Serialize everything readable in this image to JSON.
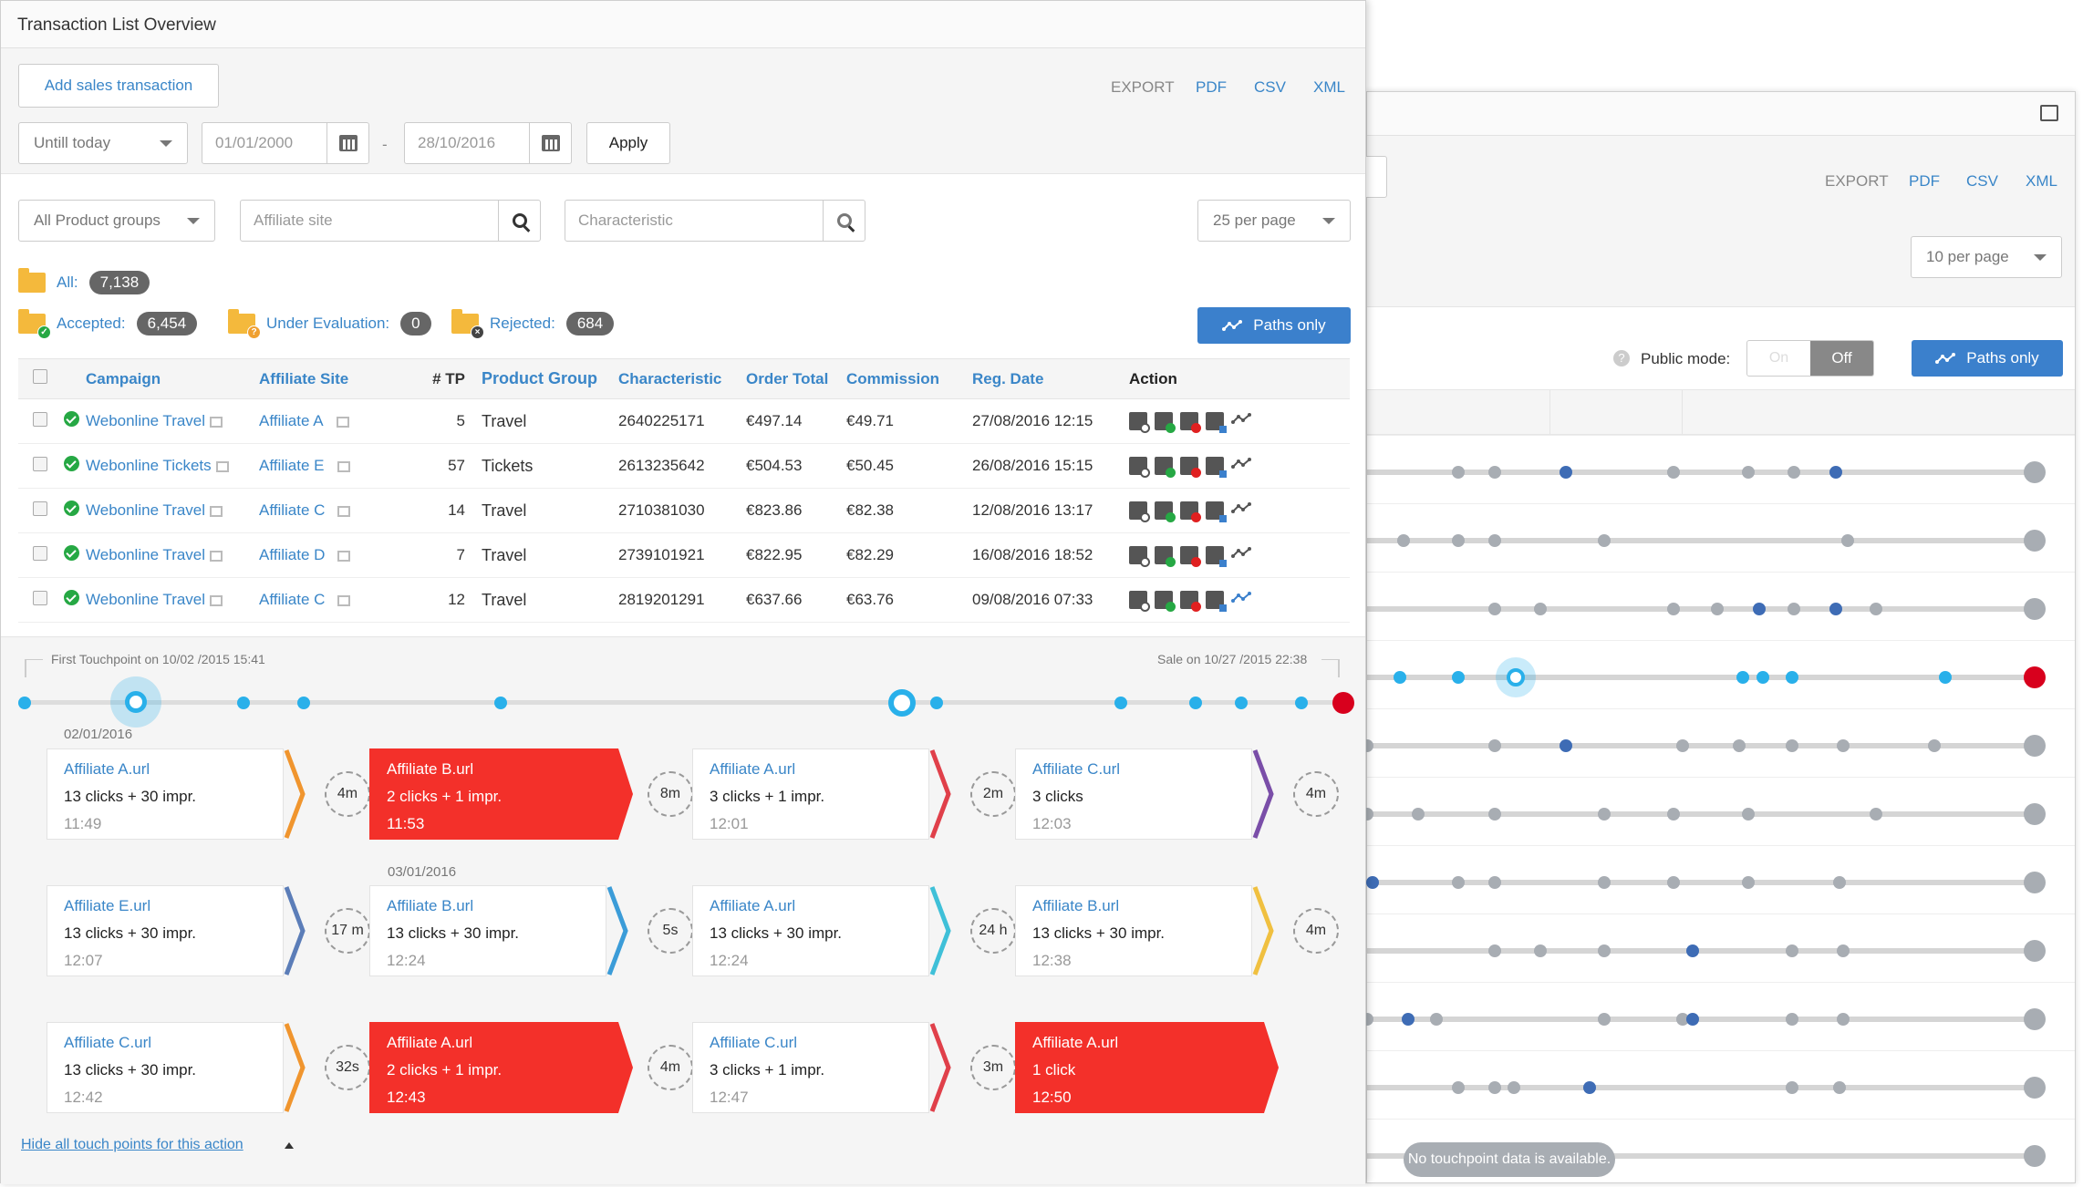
{
  "back_panel": {
    "export": {
      "label": "EXPORT",
      "pdf": "PDF",
      "csv": "CSV",
      "xml": "XML"
    },
    "per_page": "10 per page",
    "public_mode": {
      "label": "Public mode:",
      "on": "On",
      "off": "Off"
    },
    "paths_only": "Paths only",
    "no_data": "No touchpoint data is available."
  },
  "front": {
    "title": "Transaction List Overview",
    "add_button": "Add sales transaction",
    "export": {
      "label": "EXPORT",
      "pdf": "PDF",
      "csv": "CSV",
      "xml": "XML"
    },
    "period_select": "Untill today",
    "date_from": "01/01/2000",
    "date_sep": "-",
    "date_to": "28/10/2016",
    "apply": "Apply",
    "product_groups": "All Product groups",
    "affiliate_placeholder": "Affiliate site",
    "characteristic_placeholder": "Characteristic",
    "per_page": "25 per page",
    "stats": {
      "all_label": "All:",
      "all_count": "7,138",
      "accepted_label": "Accepted:",
      "accepted_count": "6,454",
      "under_label": "Under Evaluation:",
      "under_count": "0",
      "rejected_label": "Rejected:",
      "rejected_count": "684"
    },
    "paths_only": "Paths only",
    "table": {
      "headers": [
        "Campaign",
        "Affiliate Site",
        "# TP",
        "Product Group",
        "Characteristic",
        "Order Total",
        "Commission",
        "Reg. Date",
        "Action"
      ],
      "rows": [
        {
          "campaign": "Webonline Travel",
          "site": "Affiliate A",
          "tp": "5",
          "group": "Travel",
          "char": "2640225171",
          "total": "€497.14",
          "comm": "€49.71",
          "date": "27/08/2016 12:15"
        },
        {
          "campaign": "Webonline Tickets",
          "site": "Affiliate E",
          "tp": "57",
          "group": "Tickets",
          "char": "2613235642",
          "total": "€504.53",
          "comm": "€50.45",
          "date": "26/08/2016 15:15"
        },
        {
          "campaign": "Webonline Travel",
          "site": "Affiliate C",
          "tp": "14",
          "group": "Travel",
          "char": "2710381030",
          "total": "€823.86",
          "comm": "€82.38",
          "date": "12/08/2016 13:17"
        },
        {
          "campaign": "Webonline Travel",
          "site": "Affiliate D",
          "tp": "7",
          "group": "Travel",
          "char": "2739101921",
          "total": "€822.95",
          "comm": "€82.29",
          "date": "16/08/2016 18:52"
        },
        {
          "campaign": "Webonline Travel",
          "site": "Affiliate C",
          "tp": "12",
          "group": "Travel",
          "char": "2819201291",
          "total": "€637.66",
          "comm": "€63.76",
          "date": "09/08/2016 07:33"
        }
      ]
    },
    "touchpoints": {
      "first": "First Touchpoint on 10/02 /2015 15:41",
      "sale": "Sale on 10/27 /2015 22:38",
      "date1": "02/01/2016",
      "date2": "03/01/2016",
      "cards": [
        {
          "url": "Affiliate A.url",
          "clicks": "13 clicks + 30 impr.",
          "time": "11:49",
          "gap": "4m"
        },
        {
          "url": "Affiliate B.url",
          "clicks": "2 clicks + 1 impr.",
          "time": "11:53",
          "gap": "8m"
        },
        {
          "url": "Affiliate A.url",
          "clicks": "3 clicks + 1 impr.",
          "time": "12:01",
          "gap": "2m"
        },
        {
          "url": "Affiliate C.url",
          "clicks": "3 clicks",
          "time": "12:03",
          "gap": "4m"
        },
        {
          "url": "Affiliate E.url",
          "clicks": "13 clicks + 30 impr.",
          "time": "12:07",
          "gap": "17 m"
        },
        {
          "url": "Affiliate B.url",
          "clicks": "13 clicks + 30 impr.",
          "time": "12:24",
          "gap": "5s"
        },
        {
          "url": "Affiliate A.url",
          "clicks": "13 clicks + 30 impr.",
          "time": "12:24",
          "gap": "24 h"
        },
        {
          "url": "Affiliate B.url",
          "clicks": "13 clicks + 30 impr.",
          "time": "12:38",
          "gap": "4m"
        },
        {
          "url": "Affiliate C.url",
          "clicks": "13 clicks + 30 impr.",
          "time": "12:42",
          "gap": "32s"
        },
        {
          "url": "Affiliate A.url",
          "clicks": "2 clicks + 1 impr.",
          "time": "12:43",
          "gap": "4m"
        },
        {
          "url": "Affiliate C.url",
          "clicks": "3 clicks + 1 impr.",
          "time": "12:47",
          "gap": "3m"
        },
        {
          "url": "Affiliate A.url",
          "clicks": "1 click",
          "time": "12:50",
          "gap": ""
        }
      ],
      "hide_link": "Hide all touch points for this action"
    }
  }
}
